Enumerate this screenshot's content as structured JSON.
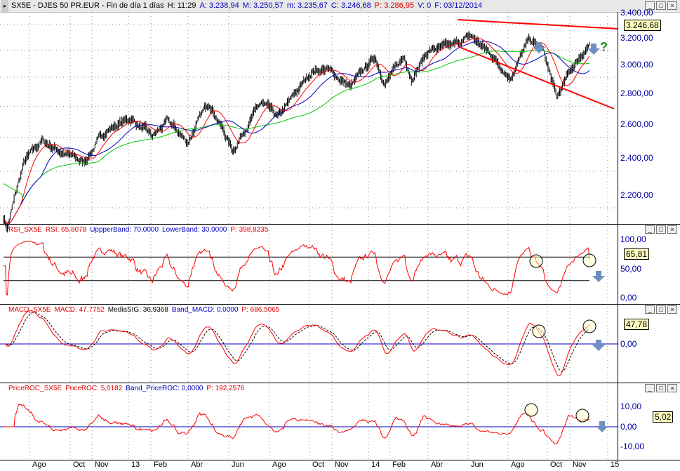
{
  "header": {
    "symbol": "SX5E - DJES 50 PR.EUR - Fin de día 1 días",
    "time": "H: 11:29",
    "open": "A: 3.238,94",
    "high": "M: 3.250,57",
    "low": "m: 3.235,67",
    "close": "C: 3.246,68",
    "p": "P: 3.286,95",
    "vol": "V: 0",
    "date": "F: 03/12/2014"
  },
  "price_panel": {
    "ticks": [
      "3.400,00",
      "3.200,00",
      "3.000,00",
      "2.800,00",
      "2.600,00",
      "2.400,00",
      "2.200,00"
    ],
    "last": "3.246,68",
    "question": "?"
  },
  "rsi_panel": {
    "name": "RSI_SX5E",
    "rsi": "RSI: 65,8078",
    "upper": "UppperBand: 70,0000",
    "lower": "LowerBand: 30,0000",
    "p": "P: 398,8235",
    "ticks": [
      "100,00",
      "50,00",
      "0,00"
    ],
    "last": "65,81"
  },
  "macd_panel": {
    "name": "MACD_SX5E",
    "macd": "MACD: 47,7752",
    "sig": "MediaSIG: 36,9368",
    "band": "Band_MACD: 0,0000",
    "p": "P: 686,5065",
    "ticks": [
      "0,00"
    ],
    "last": "47,78"
  },
  "roc_panel": {
    "name": "PriceROC_SX5E",
    "roc": "PriceROC: 5,0182",
    "band": "Band_PriceROC: 0,0000",
    "p": "P: 192,2576",
    "ticks": [
      "10,00",
      "0,00",
      "-10,00"
    ],
    "last": "5,02"
  },
  "x_labels": [
    "Ago",
    "Oct",
    "Nov",
    "13",
    "Feb",
    "Abr",
    "Jun",
    "Ago",
    "Oct",
    "Nov",
    "14",
    "Feb",
    "Abr",
    "Jun",
    "Ago",
    "Oct",
    "Nov",
    "15"
  ],
  "colors": {
    "price": "#000000",
    "ma_fast": "#ff0000",
    "ma_mid": "#0000c0",
    "ma_slow": "#00cc00",
    "trendline": "#ff0000",
    "arrow": "#6f8fc0",
    "question": "#228b22"
  },
  "chart_data": {
    "type": "line",
    "scale": "log",
    "ylim": [
      2100,
      3450
    ],
    "grid": true,
    "close_keypoints": [
      [
        "2012-07-20",
        2150
      ],
      [
        "2012-07-26",
        2100
      ],
      [
        "2012-08-20",
        2450
      ],
      [
        "2012-09-15",
        2580
      ],
      [
        "2012-10-20",
        2500
      ],
      [
        "2012-11-15",
        2450
      ],
      [
        "2012-12-20",
        2650
      ],
      [
        "2013-01-25",
        2720
      ],
      [
        "2013-02-25",
        2600
      ],
      [
        "2013-03-20",
        2700
      ],
      [
        "2013-04-18",
        2570
      ],
      [
        "2013-05-20",
        2830
      ],
      [
        "2013-06-24",
        2520
      ],
      [
        "2013-07-15",
        2680
      ],
      [
        "2013-08-05",
        2820
      ],
      [
        "2013-08-30",
        2720
      ],
      [
        "2013-10-20",
        3050
      ],
      [
        "2013-11-10",
        3060
      ],
      [
        "2013-12-15",
        2930
      ],
      [
        "2014-01-20",
        3150
      ],
      [
        "2014-02-04",
        2960
      ],
      [
        "2014-03-05",
        3150
      ],
      [
        "2014-03-15",
        3000
      ],
      [
        "2014-04-10",
        3200
      ],
      [
        "2014-05-15",
        3230
      ],
      [
        "2014-06-10",
        3310
      ],
      [
        "2014-07-10",
        3170
      ],
      [
        "2014-08-08",
        3000
      ],
      [
        "2014-09-05",
        3280
      ],
      [
        "2014-09-25",
        3200
      ],
      [
        "2014-10-16",
        2850
      ],
      [
        "2014-11-05",
        3050
      ],
      [
        "2014-12-03",
        3246.68
      ]
    ],
    "rsi_bands": [
      30,
      70
    ],
    "rsi_last": 65.81,
    "macd_last": 47.78,
    "roc_last": 5.02
  }
}
